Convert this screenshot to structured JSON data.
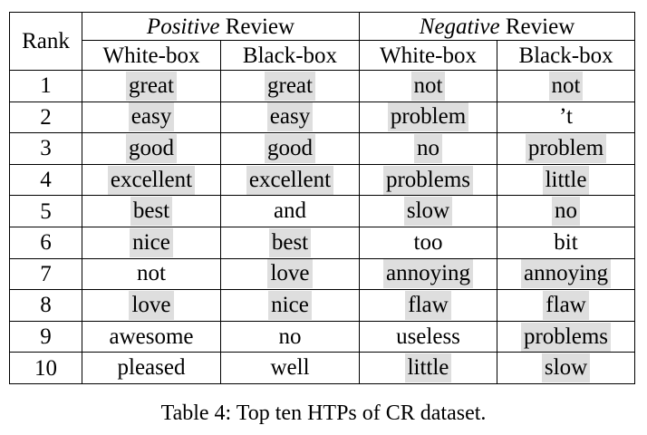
{
  "table": {
    "rank_header": "Rank",
    "groups": [
      {
        "italic": "Positive",
        "rest": " Review"
      },
      {
        "italic": "Negative",
        "rest": " Review"
      }
    ],
    "subheaders": [
      "White-box",
      "Black-box",
      "White-box",
      "Black-box"
    ],
    "highlight_color": "#dedede",
    "rows": [
      {
        "rank": "1",
        "cells": [
          {
            "text": "great",
            "highlighted": true
          },
          {
            "text": "great",
            "highlighted": true
          },
          {
            "text": "not",
            "highlighted": true
          },
          {
            "text": "not",
            "highlighted": true
          }
        ]
      },
      {
        "rank": "2",
        "cells": [
          {
            "text": "easy",
            "highlighted": true
          },
          {
            "text": "easy",
            "highlighted": true
          },
          {
            "text": "problem",
            "highlighted": true
          },
          {
            "text": "’t",
            "highlighted": false
          }
        ]
      },
      {
        "rank": "3",
        "cells": [
          {
            "text": "good",
            "highlighted": true
          },
          {
            "text": "good",
            "highlighted": true
          },
          {
            "text": "no",
            "highlighted": true
          },
          {
            "text": "problem",
            "highlighted": true
          }
        ]
      },
      {
        "rank": "4",
        "cells": [
          {
            "text": "excellent",
            "highlighted": true
          },
          {
            "text": "excellent",
            "highlighted": true
          },
          {
            "text": "problems",
            "highlighted": true
          },
          {
            "text": "little",
            "highlighted": true
          }
        ]
      },
      {
        "rank": "5",
        "cells": [
          {
            "text": "best",
            "highlighted": true
          },
          {
            "text": "and",
            "highlighted": false
          },
          {
            "text": "slow",
            "highlighted": true
          },
          {
            "text": "no",
            "highlighted": true
          }
        ]
      },
      {
        "rank": "6",
        "cells": [
          {
            "text": "nice",
            "highlighted": true
          },
          {
            "text": "best",
            "highlighted": true
          },
          {
            "text": "too",
            "highlighted": false
          },
          {
            "text": "bit",
            "highlighted": false
          }
        ]
      },
      {
        "rank": "7",
        "cells": [
          {
            "text": "not",
            "highlighted": false
          },
          {
            "text": "love",
            "highlighted": true
          },
          {
            "text": "annoying",
            "highlighted": true
          },
          {
            "text": "annoying",
            "highlighted": true
          }
        ]
      },
      {
        "rank": "8",
        "cells": [
          {
            "text": "love",
            "highlighted": true
          },
          {
            "text": "nice",
            "highlighted": true
          },
          {
            "text": "flaw",
            "highlighted": true
          },
          {
            "text": "flaw",
            "highlighted": true
          }
        ]
      },
      {
        "rank": "9",
        "cells": [
          {
            "text": "awesome",
            "highlighted": false
          },
          {
            "text": "no",
            "highlighted": false
          },
          {
            "text": "useless",
            "highlighted": false
          },
          {
            "text": "problems",
            "highlighted": true
          }
        ]
      },
      {
        "rank": "10",
        "cells": [
          {
            "text": "pleased",
            "highlighted": false
          },
          {
            "text": "well",
            "highlighted": false
          },
          {
            "text": "little",
            "highlighted": true
          },
          {
            "text": "slow",
            "highlighted": true
          }
        ]
      }
    ]
  },
  "caption": "Table 4: Top ten HTPs of CR dataset."
}
